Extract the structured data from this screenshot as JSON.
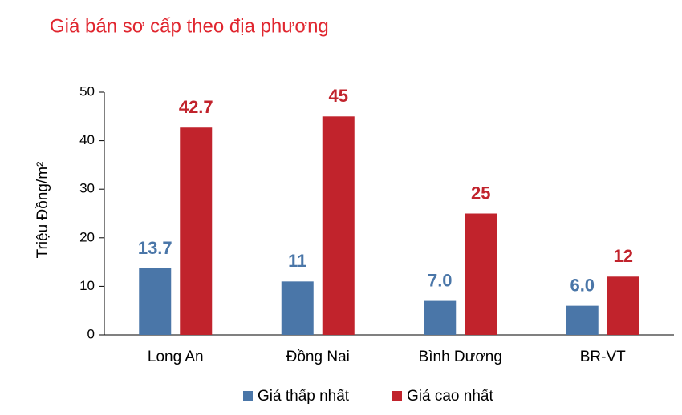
{
  "chart_data": {
    "type": "bar",
    "title": "Giá bán sơ cấp theo địa phương",
    "y_label": "Triệu Đồng/m²",
    "categories": [
      "Long An",
      "Đồng Nai",
      "Bình Dương",
      "BR-VT"
    ],
    "series": [
      {
        "name": "Giá thấp nhất",
        "color": "#4a76a8",
        "values": [
          13.7,
          11,
          7.0,
          6.0
        ],
        "value_labels": [
          "13.7",
          "11",
          "7.0",
          "6.0"
        ]
      },
      {
        "name": "Giá cao nhất",
        "color": "#c1232c",
        "values": [
          42.7,
          45,
          25,
          12
        ]
      }
    ],
    "ylim": [
      0,
      50
    ],
    "yticks": [
      0,
      10,
      20,
      30,
      40,
      50
    ],
    "grid": false,
    "legend": "bottom"
  }
}
